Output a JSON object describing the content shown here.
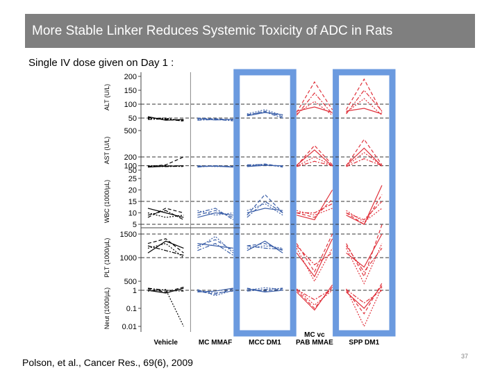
{
  "slide": {
    "title": "More Stable Linker Reduces Systemic Toxicity of ADC in Rats",
    "subtitle": "Single IV dose given on Day 1 :",
    "citation": "Polson, et al., Cancer Res., 69(6), 2009",
    "page_number": "37"
  },
  "colors": {
    "title_bg": "#7f7f7f",
    "highlight_box": "#5b8fdc",
    "vehicle": "#000000",
    "stable": "#3b5fa8",
    "unstable": "#e0303a"
  },
  "chart_data": {
    "type": "line",
    "title": "",
    "panels": [
      {
        "ylabel": "ALT (U/L)",
        "ticks": [
          "200",
          "150",
          "100",
          "50"
        ],
        "ref_lines": [
          "100",
          "50"
        ]
      },
      {
        "ylabel": "AST (U/L)",
        "ticks": [
          "500",
          "200",
          "100",
          "50"
        ],
        "ref_lines": [
          "200",
          "100"
        ]
      },
      {
        "ylabel": "WBC (1000/µL)",
        "ticks": [
          "25",
          "20",
          "15",
          "10",
          "5"
        ],
        "ref_lines": [
          "15",
          "5"
        ]
      },
      {
        "ylabel": "PLT (1000/µL)",
        "ticks": [
          "1500",
          "1000",
          "500"
        ],
        "ref_lines": [
          "1500",
          "1000"
        ]
      },
      {
        "ylabel": "Neut (1000/µL)",
        "ticks": [
          "1",
          "0.1",
          "0.01"
        ],
        "ref_lines": [
          "1"
        ]
      }
    ],
    "groups": [
      {
        "name": "Vehicle",
        "color": "vehicle",
        "highlighted": false
      },
      {
        "name": "MC MMAF",
        "color": "stable",
        "highlighted": false
      },
      {
        "name": "MCC DM1",
        "color": "stable",
        "highlighted": true
      },
      {
        "name": "MC vc PAB MMAE",
        "color": "unstable",
        "highlighted": false
      },
      {
        "name": "SPP DM1",
        "color": "unstable",
        "highlighted": true
      }
    ],
    "group_label_lines": [
      [
        "Vehicle"
      ],
      [
        "MC MMAF"
      ],
      [
        "MCC DM1"
      ],
      [
        "MC vc",
        "PAB MMAE"
      ],
      [
        "SPP DM1"
      ]
    ],
    "time_points": 3,
    "series": [
      {
        "panel": 0,
        "group": 0,
        "lines": [
          [
            52,
            45,
            40
          ],
          [
            48,
            50,
            38
          ],
          [
            55,
            42,
            45
          ],
          [
            45,
            47,
            42
          ]
        ]
      },
      {
        "panel": 0,
        "group": 1,
        "lines": [
          [
            50,
            47,
            44
          ],
          [
            45,
            48,
            42
          ],
          [
            48,
            43,
            46
          ],
          [
            42,
            45,
            40
          ]
        ]
      },
      {
        "panel": 0,
        "group": 2,
        "lines": [
          [
            60,
            75,
            55
          ],
          [
            65,
            80,
            60
          ],
          [
            58,
            70,
            62
          ],
          [
            62,
            72,
            50
          ]
        ]
      },
      {
        "panel": 0,
        "group": 3,
        "lines": [
          [
            70,
            180,
            80
          ],
          [
            65,
            110,
            60
          ],
          [
            75,
            90,
            70
          ],
          [
            60,
            140,
            65
          ]
        ]
      },
      {
        "panel": 0,
        "group": 4,
        "lines": [
          [
            80,
            190,
            70
          ],
          [
            70,
            120,
            60
          ],
          [
            75,
            85,
            65
          ],
          [
            65,
            150,
            75
          ]
        ]
      },
      {
        "panel": 1,
        "group": 0,
        "lines": [
          [
            90,
            110,
            200
          ],
          [
            100,
            100,
            90
          ],
          [
            85,
            95,
            100
          ],
          [
            95,
            90,
            95
          ]
        ]
      },
      {
        "panel": 1,
        "group": 1,
        "lines": [
          [
            95,
            100,
            90
          ],
          [
            100,
            90,
            95
          ],
          [
            90,
            95,
            85
          ],
          [
            85,
            100,
            90
          ]
        ]
      },
      {
        "panel": 1,
        "group": 2,
        "lines": [
          [
            95,
            120,
            90
          ],
          [
            100,
            110,
            95
          ],
          [
            90,
            105,
            100
          ],
          [
            110,
            115,
            85
          ]
        ]
      },
      {
        "panel": 1,
        "group": 3,
        "lines": [
          [
            100,
            330,
            110
          ],
          [
            95,
            200,
            100
          ],
          [
            105,
            280,
            95
          ],
          [
            90,
            150,
            100
          ]
        ]
      },
      {
        "panel": 1,
        "group": 4,
        "lines": [
          [
            100,
            400,
            110
          ],
          [
            95,
            250,
            100
          ],
          [
            105,
            300,
            95
          ],
          [
            90,
            180,
            100
          ]
        ]
      },
      {
        "panel": 2,
        "group": 0,
        "lines": [
          [
            8,
            12,
            10
          ],
          [
            10,
            8,
            9
          ],
          [
            12,
            10,
            8
          ],
          [
            9,
            11,
            7
          ]
        ]
      },
      {
        "panel": 2,
        "group": 1,
        "lines": [
          [
            9,
            11,
            8
          ],
          [
            11,
            9,
            10
          ],
          [
            8,
            10,
            9
          ],
          [
            10,
            12,
            7
          ]
        ]
      },
      {
        "panel": 2,
        "group": 2,
        "lines": [
          [
            9,
            18,
            10
          ],
          [
            11,
            14,
            9
          ],
          [
            10,
            12,
            11
          ],
          [
            8,
            15,
            10
          ]
        ]
      },
      {
        "panel": 2,
        "group": 3,
        "lines": [
          [
            10,
            8,
            16
          ],
          [
            11,
            9,
            12
          ],
          [
            9,
            7,
            20
          ],
          [
            10,
            10,
            14
          ]
        ]
      },
      {
        "panel": 2,
        "group": 4,
        "lines": [
          [
            10,
            5,
            18
          ],
          [
            11,
            6,
            12
          ],
          [
            9,
            5,
            22
          ],
          [
            10,
            7,
            15
          ]
        ]
      },
      {
        "panel": 3,
        "group": 0,
        "lines": [
          [
            1300,
            1400,
            1100
          ],
          [
            1200,
            1300,
            1000
          ],
          [
            1100,
            1350,
            1200
          ],
          [
            1250,
            1150,
            1050
          ]
        ]
      },
      {
        "panel": 3,
        "group": 1,
        "lines": [
          [
            1250,
            1380,
            1150
          ],
          [
            1200,
            1450,
            1100
          ],
          [
            1300,
            1250,
            1200
          ],
          [
            1150,
            1300,
            1050
          ]
        ]
      },
      {
        "panel": 3,
        "group": 2,
        "lines": [
          [
            1250,
            1300,
            1150
          ],
          [
            1200,
            1250,
            1200
          ],
          [
            1150,
            1350,
            1100
          ],
          [
            1250,
            1200,
            1180
          ]
        ]
      },
      {
        "panel": 3,
        "group": 3,
        "lines": [
          [
            1300,
            700,
            1500
          ],
          [
            1200,
            500,
            1200
          ],
          [
            1100,
            600,
            1400
          ],
          [
            1250,
            850,
            1100
          ]
        ]
      },
      {
        "panel": 3,
        "group": 4,
        "lines": [
          [
            1300,
            600,
            1700
          ],
          [
            1200,
            450,
            1300
          ],
          [
            1100,
            800,
            1500
          ],
          [
            1250,
            700,
            1200
          ]
        ]
      },
      {
        "panel": 4,
        "group": 0,
        "lines": [
          [
            1.2,
            0.8,
            1.5
          ],
          [
            0.9,
            1.1,
            0.01
          ],
          [
            1.0,
            0.7,
            1.3
          ],
          [
            1.3,
            1.0,
            0.9
          ]
        ]
      },
      {
        "panel": 4,
        "group": 1,
        "lines": [
          [
            0.9,
            0.6,
            1.2
          ],
          [
            1.1,
            0.5,
            1.0
          ],
          [
            0.8,
            0.9,
            1.3
          ],
          [
            1.0,
            0.7,
            0.9
          ]
        ]
      },
      {
        "panel": 4,
        "group": 2,
        "lines": [
          [
            1.3,
            0.9,
            1.2
          ],
          [
            1.0,
            1.4,
            1.1
          ],
          [
            1.2,
            0.8,
            1.0
          ],
          [
            0.9,
            1.1,
            1.3
          ]
        ]
      },
      {
        "panel": 4,
        "group": 3,
        "lines": [
          [
            1.0,
            0.1,
            1.5
          ],
          [
            1.2,
            0.15,
            1.0
          ],
          [
            0.8,
            0.08,
            2.0
          ],
          [
            1.1,
            0.3,
            1.2
          ]
        ]
      },
      {
        "panel": 4,
        "group": 4,
        "lines": [
          [
            1.0,
            0.05,
            2.5
          ],
          [
            1.2,
            0.01,
            1.5
          ],
          [
            0.8,
            0.1,
            1.8
          ],
          [
            1.1,
            0.2,
            1.0
          ]
        ]
      }
    ]
  }
}
